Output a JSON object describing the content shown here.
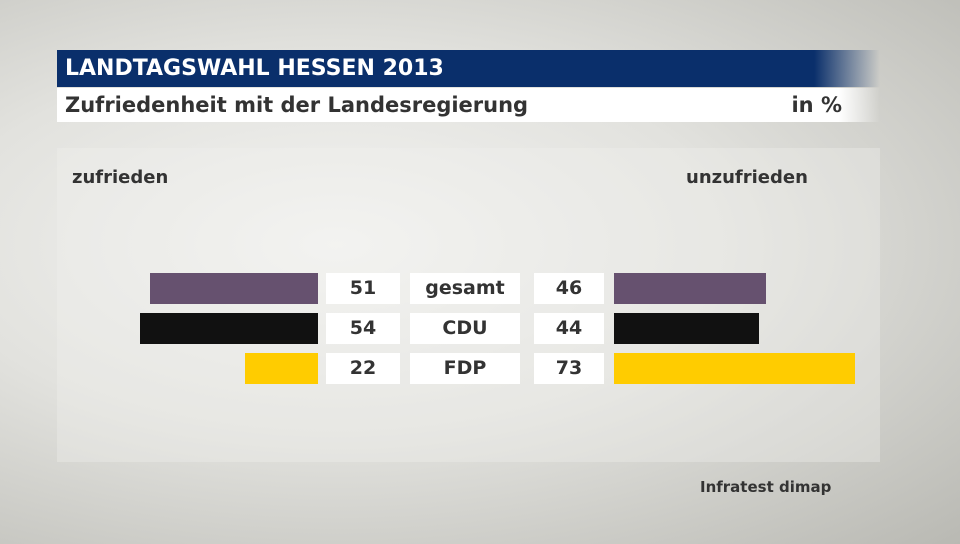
{
  "title": "LANDTAGSWAHL HESSEN 2013",
  "subtitle": "Zufriedenheit mit der Landesregierung",
  "unit": "in %",
  "source": "Infratest dimap",
  "chart_data": {
    "type": "bar",
    "left_label": "zufrieden",
    "right_label": "unzufrieden",
    "categories": [
      "gesamt",
      "CDU",
      "FDP"
    ],
    "series": [
      {
        "name": "zufrieden",
        "values": [
          51,
          54,
          22
        ]
      },
      {
        "name": "unzufrieden",
        "values": [
          46,
          44,
          73
        ]
      }
    ],
    "colors": [
      "#66516f",
      "#111111",
      "#ffcc00"
    ]
  }
}
